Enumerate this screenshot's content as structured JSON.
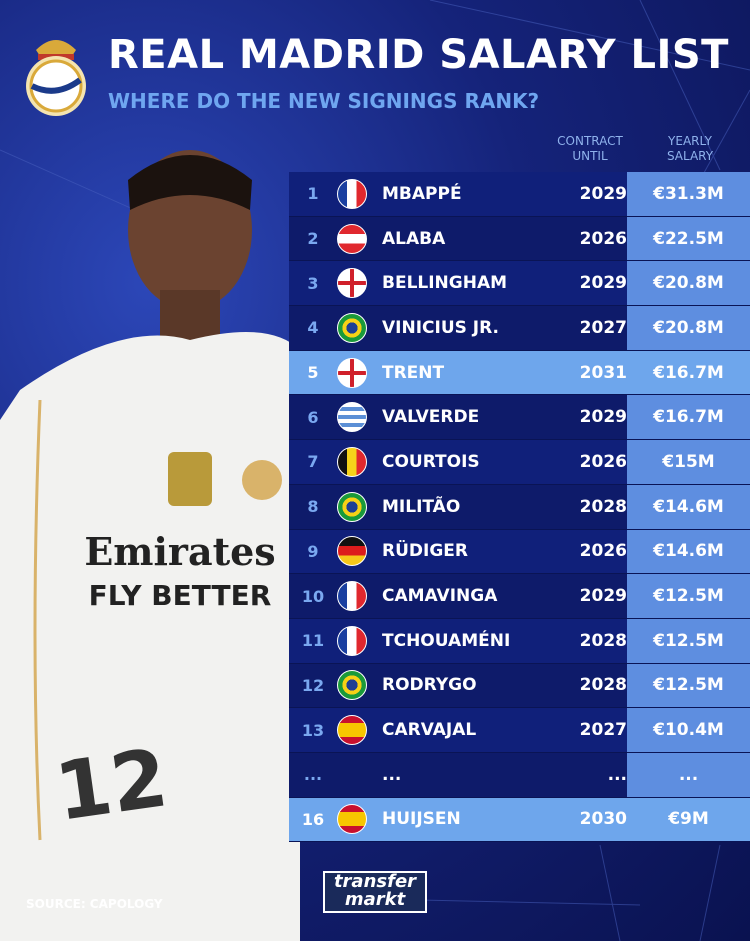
{
  "title": "REAL MADRID SALARY LIST",
  "subtitle": "WHERE DO THE NEW SIGNINGS RANK?",
  "columns": {
    "contract": [
      "CONTRACT",
      "UNTIL"
    ],
    "salary": [
      "YEARLY",
      "SALARY"
    ]
  },
  "rows": [
    {
      "rank": "1",
      "flag": "france",
      "name": "MBAPPÉ",
      "until": "2029",
      "salary": "€31.3M"
    },
    {
      "rank": "2",
      "flag": "austria",
      "name": "ALABA",
      "until": "2026",
      "salary": "€22.5M"
    },
    {
      "rank": "3",
      "flag": "england",
      "name": "BELLINGHAM",
      "until": "2029",
      "salary": "€20.8M"
    },
    {
      "rank": "4",
      "flag": "brazil",
      "name": "VINICIUS JR.",
      "until": "2027",
      "salary": "€20.8M"
    },
    {
      "rank": "5",
      "flag": "england",
      "name": "TRENT",
      "until": "2031",
      "salary": "€16.7M",
      "highlight": true
    },
    {
      "rank": "6",
      "flag": "uruguay",
      "name": "VALVERDE",
      "until": "2029",
      "salary": "€16.7M"
    },
    {
      "rank": "7",
      "flag": "belgium",
      "name": "COURTOIS",
      "until": "2026",
      "salary": "€15M"
    },
    {
      "rank": "8",
      "flag": "brazil",
      "name": "MILITÃO",
      "until": "2028",
      "salary": "€14.6M"
    },
    {
      "rank": "9",
      "flag": "germany",
      "name": "RÜDIGER",
      "until": "2026",
      "salary": "€14.6M"
    },
    {
      "rank": "10",
      "flag": "france",
      "name": "CAMAVINGA",
      "until": "2029",
      "salary": "€12.5M"
    },
    {
      "rank": "11",
      "flag": "france",
      "name": "TCHOUAMÉNI",
      "until": "2028",
      "salary": "€12.5M"
    },
    {
      "rank": "12",
      "flag": "brazil",
      "name": "RODRYGO",
      "until": "2028",
      "salary": "€12.5M"
    },
    {
      "rank": "13",
      "flag": "spain",
      "name": "CARVAJAL",
      "until": "2027",
      "salary": "€10.4M"
    },
    {
      "rank": "...",
      "flag": "",
      "name": "...",
      "until": "...",
      "salary": "..."
    },
    {
      "rank": "16",
      "flag": "spain",
      "name": "HUIJSEN",
      "until": "2030",
      "salary": "€9M",
      "highlight": true
    }
  ],
  "source": "SOURCE: CAPOLOGY",
  "logo": [
    "transfer",
    "markt"
  ],
  "jersey": {
    "sponsor": "Emirates",
    "tagline": "FLY BETTER",
    "number": "12"
  },
  "colors": {
    "row": "#10207a",
    "salary_cell": "#5e8ee0",
    "highlight": "#6ea6ec",
    "accent": "#6fa6f0"
  }
}
